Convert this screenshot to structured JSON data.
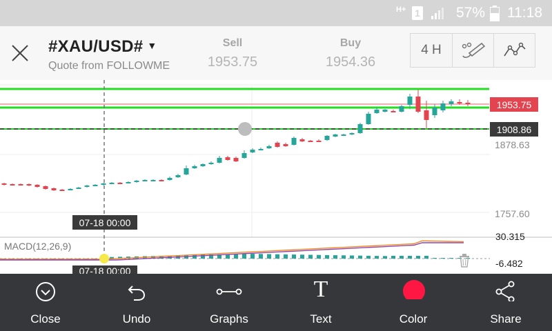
{
  "status_bar": {
    "network": "H+",
    "sim": "1",
    "battery": "57%",
    "time": "11:18"
  },
  "header": {
    "symbol": "#XAU/USD#",
    "quote_source": "Quote from FOLLOWME",
    "sell_label": "Sell",
    "sell_price": "1953.75",
    "buy_label": "Buy",
    "buy_price": "1954.36",
    "timeframe": "4 H"
  },
  "price_chart": {
    "price_tag_current": "1953.75",
    "price_tag_drawn": "1908.86",
    "axis_high": "1878.63",
    "axis_low": "1757.60",
    "crosshair_date": "07-18 00:00",
    "colors": {
      "up": "#26a69a",
      "down": "#e2454f",
      "hline": "#22dd22",
      "current": "#e2454f"
    }
  },
  "macd": {
    "label": "MACD(12,26,9)",
    "axis_high": "30.315",
    "axis_low": "-6.482",
    "crosshair_date": "07-18 00:00"
  },
  "toolbar": {
    "close": "Close",
    "undo": "Undo",
    "graphs": "Graphs",
    "text": "Text",
    "text_icon": "T",
    "color": "Color",
    "share": "Share",
    "selected_color": "#ff1744"
  }
}
